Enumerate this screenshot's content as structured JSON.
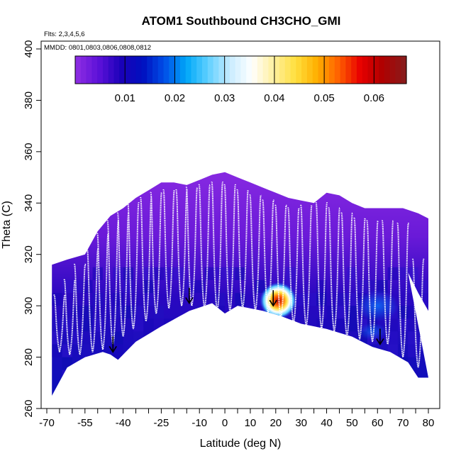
{
  "chart_data": {
    "type": "heatmap",
    "title": "ATOM1 Southbound CH3CHO_GMI",
    "subtitle_flights": "Flts: 2,3,4,5,6",
    "subtitle_dates": "MMDD: 0801,0803,0806,0808,0812",
    "xlabel": "Latitude (deg N)",
    "ylabel": "Theta (C)",
    "xlim": [
      -70,
      80
    ],
    "ylim": [
      260,
      400
    ],
    "x_tick_labels": [
      "-70",
      "-55",
      "-40",
      "-25",
      "-10",
      "0",
      "10",
      "20",
      "30",
      "40",
      "50",
      "60",
      "70",
      "80"
    ],
    "y_tick_labels": [
      "260",
      "280",
      "300",
      "320",
      "340",
      "360",
      "380",
      "400"
    ],
    "colorbar": {
      "range": [
        0,
        0.0665
      ],
      "tick_labels": [
        "0.01",
        "0.02",
        "0.03",
        "0.04",
        "0.05",
        "0.06"
      ],
      "colors": [
        "#8a2be2",
        "#5a10d8",
        "#1a00b8",
        "#0010c0",
        "#0050e8",
        "#00a8f8",
        "#60d0ff",
        "#c8ecff",
        "#ffffff",
        "#fff0a0",
        "#ffe040",
        "#ffb000",
        "#ff6000",
        "#e80000",
        "#b00000",
        "#8a1a1a"
      ]
    },
    "data_floor": [
      [
        -68,
        265
      ],
      [
        -62,
        276
      ],
      [
        -55,
        280
      ],
      [
        -48,
        282
      ],
      [
        -45,
        281
      ],
      [
        -42,
        279
      ],
      [
        -35,
        286
      ],
      [
        -25,
        292
      ],
      [
        -14,
        298
      ],
      [
        -5,
        301
      ],
      [
        0,
        297
      ],
      [
        5,
        300
      ],
      [
        15,
        298
      ],
      [
        22,
        296
      ],
      [
        30,
        293
      ],
      [
        40,
        291
      ],
      [
        50,
        288
      ],
      [
        58,
        284
      ],
      [
        65,
        282
      ],
      [
        72,
        278
      ],
      [
        76,
        272
      ],
      [
        80,
        272
      ]
    ],
    "data_ceiling": [
      [
        -68,
        316
      ],
      [
        -62,
        318
      ],
      [
        -55,
        320
      ],
      [
        -50,
        329
      ],
      [
        -45,
        335
      ],
      [
        -40,
        338
      ],
      [
        -35,
        342
      ],
      [
        -30,
        345
      ],
      [
        -25,
        348
      ],
      [
        -20,
        348
      ],
      [
        -15,
        347
      ],
      [
        -10,
        349
      ],
      [
        -5,
        351
      ],
      [
        0,
        352
      ],
      [
        5,
        350
      ],
      [
        10,
        348
      ],
      [
        15,
        346
      ],
      [
        20,
        344
      ],
      [
        25,
        342
      ],
      [
        30,
        341
      ],
      [
        35,
        340
      ],
      [
        40,
        344
      ],
      [
        45,
        343
      ],
      [
        50,
        340
      ],
      [
        55,
        338
      ],
      [
        62,
        338
      ],
      [
        70,
        338
      ],
      [
        76,
        336
      ],
      [
        80,
        334
      ],
      [
        80,
        298
      ],
      [
        76,
        305
      ],
      [
        72,
        313
      ]
    ],
    "high_values": [
      {
        "lat": 19,
        "theta": 301,
        "value": 0.062
      },
      {
        "lat": 21,
        "theta": 302,
        "value": 0.045
      },
      {
        "lat": 22,
        "theta": 305,
        "value": 0.028
      },
      {
        "lat": 20,
        "theta": 307,
        "value": 0.018
      },
      {
        "lat": 24,
        "theta": 300,
        "value": 0.04
      }
    ],
    "arrows": [
      {
        "lat": -44,
        "theta": 282
      },
      {
        "lat": -14,
        "theta": 301
      },
      {
        "lat": 19,
        "theta": 300
      },
      {
        "lat": 61,
        "theta": 285
      }
    ],
    "profiles_lat": [
      -65,
      -61,
      -57,
      -52,
      -48,
      -44,
      -40,
      -36,
      -31,
      -27,
      -22,
      -17,
      -13,
      -8,
      -3,
      2,
      7,
      12,
      17,
      22,
      27,
      32,
      38,
      43,
      48,
      53,
      58,
      64,
      70,
      76
    ],
    "profile_top": [
      306,
      312,
      318,
      324,
      330,
      335,
      338,
      342,
      344,
      346,
      347,
      347,
      348,
      349,
      350,
      349,
      347,
      345,
      343,
      341,
      340,
      341,
      342,
      340,
      338,
      336,
      335,
      335,
      334,
      320
    ],
    "profile_bottom": [
      282,
      281,
      281,
      282,
      283,
      285,
      288,
      291,
      294,
      297,
      299,
      300,
      300,
      299,
      298,
      298,
      299,
      298,
      297,
      295,
      293,
      292,
      291,
      290,
      288,
      287,
      286,
      285,
      280,
      276
    ]
  }
}
